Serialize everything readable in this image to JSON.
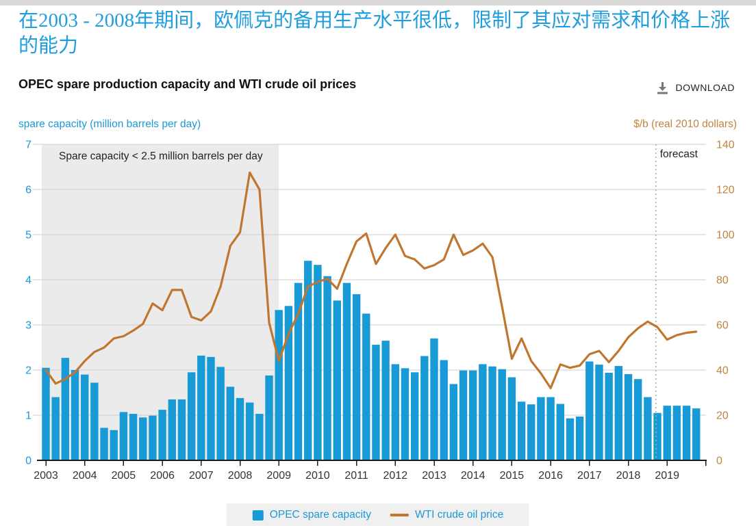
{
  "header": {
    "kicker_zh": "在2003 - 2008年期间，欧佩克的备用生产水平很低，限制了其应对需求和价格上涨的能力",
    "title": "OPEC spare production capacity and WTI crude oil prices",
    "download_label": "DOWNLOAD"
  },
  "colors": {
    "bar_blue": "#189ad6",
    "line_orange": "#c0762f",
    "blue_text": "#1b98d8",
    "orange_text": "#c08440",
    "gridline": "#cccccc",
    "shaded_band": "#ebebeb",
    "axis_line": "#1a1a1a",
    "year_label": "#333333",
    "forecast_rule": "#aaaaaa"
  },
  "chart_data": {
    "type": "bar+line",
    "quarterly_start_year": 2003,
    "quarterly_end_year": 2019,
    "left_axis": {
      "title": "spare capacity (million barrels per day)",
      "min": 0,
      "max": 7,
      "ticks": [
        0,
        1,
        2,
        3,
        4,
        5,
        6,
        7
      ]
    },
    "right_axis": {
      "title": "$/b (real 2010 dollars)",
      "min": 0,
      "max": 140,
      "ticks": [
        0,
        20,
        40,
        60,
        80,
        100,
        120,
        140
      ]
    },
    "x_axis": {
      "year_labels": [
        2003,
        2004,
        2005,
        2006,
        2007,
        2008,
        2009,
        2010,
        2011,
        2012,
        2013,
        2014,
        2015,
        2016,
        2017,
        2018,
        2019
      ]
    },
    "shaded_region": {
      "label": "Spare capacity < 2.5 million barrels per day",
      "from_year": 2003,
      "to_year": 2009
    },
    "forecast": {
      "label": "forecast",
      "at_year": 2018.71
    },
    "series": [
      {
        "name": "OPEC spare capacity",
        "type": "bar",
        "axis": "left",
        "values": [
          2.05,
          1.4,
          2.27,
          2.0,
          1.9,
          1.72,
          0.72,
          0.67,
          1.07,
          1.03,
          0.95,
          0.99,
          1.12,
          1.35,
          1.35,
          1.95,
          2.32,
          2.29,
          2.07,
          1.63,
          1.38,
          1.28,
          1.03,
          1.88,
          3.33,
          3.42,
          3.93,
          4.42,
          4.33,
          4.08,
          3.54,
          3.93,
          3.68,
          3.25,
          2.56,
          2.65,
          2.13,
          2.04,
          1.95,
          2.31,
          2.7,
          2.22,
          1.69,
          1.99,
          1.99,
          2.13,
          2.08,
          2.02,
          1.84,
          1.3,
          1.24,
          1.4,
          1.4,
          1.25,
          0.93,
          0.97,
          2.19,
          2.12,
          1.94,
          2.09,
          1.91,
          1.8,
          1.4,
          1.05,
          1.21,
          1.21,
          1.21,
          1.15
        ]
      },
      {
        "name": "WTI crude oil price",
        "type": "line",
        "axis": "right",
        "values": [
          40,
          34,
          36,
          39,
          44,
          48,
          50,
          54,
          55,
          57.5,
          60.5,
          69.5,
          66.5,
          75.5,
          75.5,
          63.5,
          62,
          66,
          77,
          95,
          101,
          127.5,
          120,
          61,
          44,
          56,
          65,
          77,
          79,
          80.5,
          76,
          87,
          97,
          100.5,
          87,
          94,
          100,
          90.5,
          89,
          85,
          86.5,
          89,
          100,
          91,
          93,
          96,
          90,
          68,
          45,
          54,
          44,
          38.5,
          32,
          42.5,
          41,
          42,
          47,
          48.5,
          43.5,
          48.5,
          54.5,
          58.5,
          61.5,
          59,
          53.5,
          55.5,
          56.5,
          57
        ]
      }
    ]
  },
  "legend": {
    "items": [
      {
        "label": "OPEC spare capacity",
        "swatch": "square"
      },
      {
        "label": "WTI crude oil price",
        "swatch": "line"
      }
    ]
  }
}
